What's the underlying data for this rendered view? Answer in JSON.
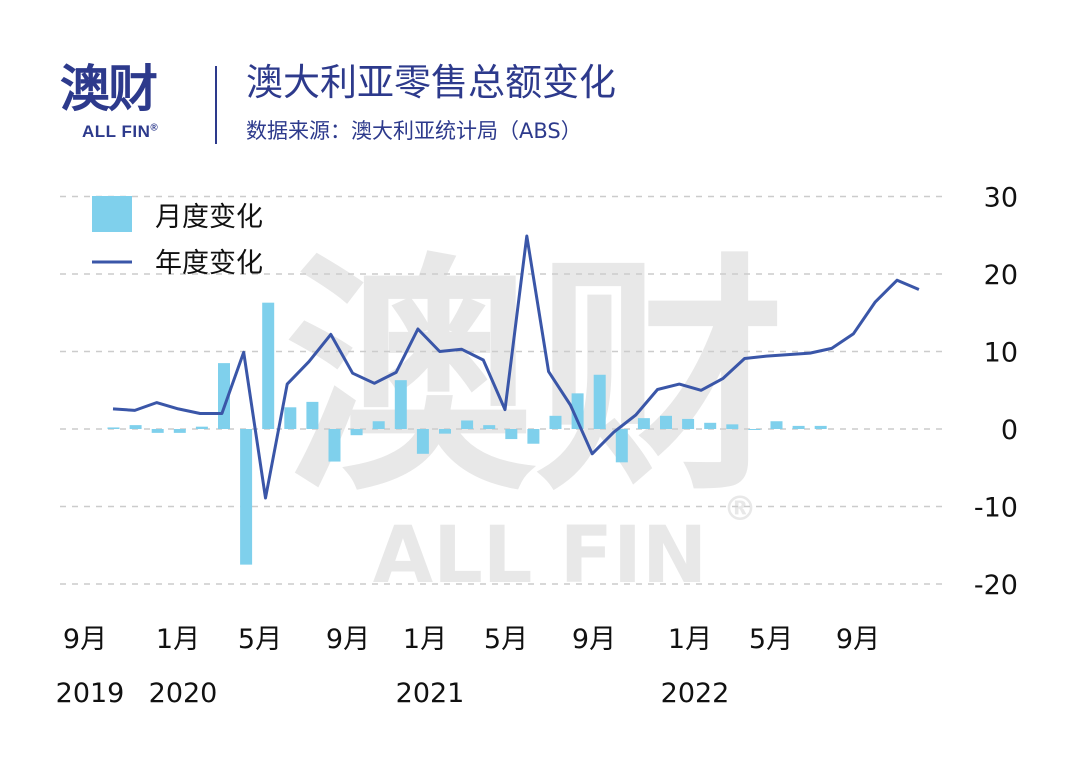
{
  "header": {
    "logo_text": "澳财",
    "logo_sub": "ALL FIN",
    "logo_reg": "®",
    "title": "澳大利亚零售总额变化",
    "subtitle": "数据来源：澳大利亚统计局（ABS）"
  },
  "watermark": {
    "text": "澳财",
    "sub": "ALL FIN",
    "reg": "®"
  },
  "colors": {
    "bar": "#7fd0ec",
    "line": "#3a56a8",
    "brand": "#2d3a8c",
    "grid": "#cccccc"
  },
  "chart_data": {
    "type": "bar+line",
    "ylim": [
      -20,
      30
    ],
    "yticks": [
      30,
      20,
      10,
      0,
      -10,
      -20
    ],
    "grid": true,
    "legend_position": "top-left",
    "series": [
      {
        "name": "月度变化",
        "type": "bar",
        "values": [
          0.2,
          0.5,
          -0.5,
          -0.5,
          0.3,
          8.5,
          -17.5,
          16.3,
          2.8,
          3.5,
          -4.2,
          -0.8,
          1.0,
          6.3,
          -3.2,
          -0.6,
          1.1,
          0.5,
          -1.3,
          -1.9,
          1.7,
          4.6,
          7.0,
          -4.3,
          1.4,
          1.7,
          1.3,
          0.8,
          0.6,
          0.0,
          1.0,
          0.4,
          0.4
        ]
      },
      {
        "name": "年度变化",
        "type": "line",
        "values": [
          2.6,
          2.4,
          3.4,
          2.6,
          2.0,
          2.0,
          9.9,
          -8.9,
          5.8,
          8.7,
          12.2,
          7.2,
          5.9,
          7.3,
          12.9,
          10.0,
          10.3,
          8.9,
          2.5,
          24.9,
          7.4,
          3.1,
          -3.2,
          -0.4,
          1.8,
          5.1,
          5.8,
          5.0,
          6.5,
          9.1,
          9.4,
          9.6,
          9.8,
          10.4,
          12.3,
          16.4,
          19.2,
          18.0
        ]
      }
    ],
    "x_labels": [
      {
        "month": "9月",
        "year": "2019"
      },
      {
        "month": "1月",
        "year": "2020"
      },
      {
        "month": "5月",
        "year": ""
      },
      {
        "month": "9月",
        "year": ""
      },
      {
        "month": "1月",
        "year": "2021"
      },
      {
        "month": "5月",
        "year": ""
      },
      {
        "month": "9月",
        "year": ""
      },
      {
        "month": "1月",
        "year": "2022"
      },
      {
        "month": "5月",
        "year": ""
      },
      {
        "month": "9月",
        "year": ""
      }
    ]
  }
}
